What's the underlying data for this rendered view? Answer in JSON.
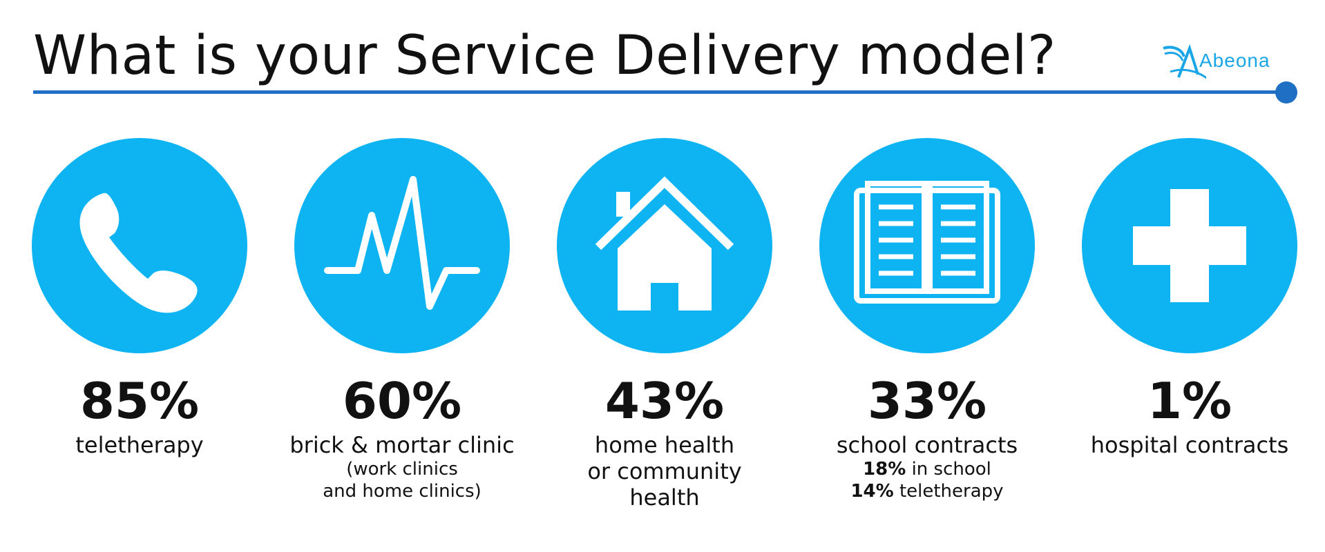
{
  "title": "What is your Service Delivery model?",
  "logo": {
    "text": "Abeona",
    "icon": "abeona-logo-icon"
  },
  "colors": {
    "circle": "#0eb4f2",
    "rule": "#1f6fc4",
    "logo": "#1aa6e6",
    "text": "#111111"
  },
  "items": [
    {
      "icon": "phone-icon",
      "percent": "85%",
      "label": "teletherapy",
      "sub_lines": []
    },
    {
      "icon": "heartbeat-icon",
      "percent": "60%",
      "label": "brick & mortar clinic",
      "sub_lines": [
        "(work clinics",
        "and home clinics)"
      ]
    },
    {
      "icon": "house-icon",
      "percent": "43%",
      "label_lines": [
        "home health",
        "or community",
        "health"
      ]
    },
    {
      "icon": "book-icon",
      "percent": "33%",
      "label": "school contracts",
      "sub_lines": [
        {
          "bold": "18%",
          "text": " in school"
        },
        {
          "bold": "14%",
          "text": " teletherapy"
        }
      ]
    },
    {
      "icon": "plus-icon",
      "percent": "1%",
      "label": "hospital contracts",
      "sub_lines": []
    }
  ]
}
